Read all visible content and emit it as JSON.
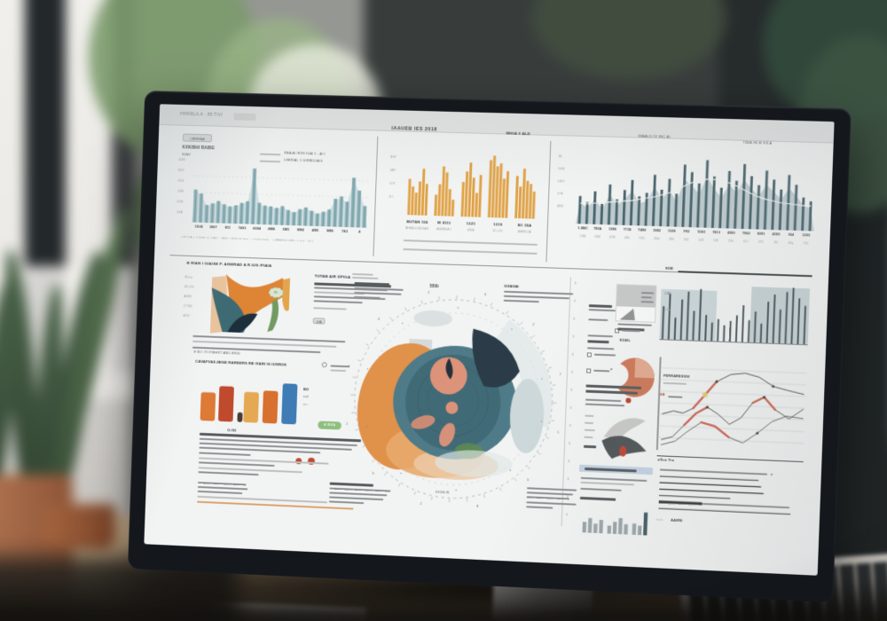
{
  "scene": {
    "description": "Desktop monitor on a wooden desk displaying a white analytics dashboard, blurred office background with plants, window and keyboard",
    "colors": {
      "teal_bar": "#8fb3ba",
      "dark_teal_bar": "#46626b",
      "amber_bar": "#e0a144",
      "orange": "#dd7a35",
      "red": "#bf4a2e",
      "blue": "#3f7cb5",
      "salmon": "#dd9379",
      "navy": "#2b3c48",
      "green": "#5c8a52",
      "screen_bg": "#f2f4f3",
      "bezel": "#14171c",
      "red_line": "#cf5f4c"
    }
  },
  "toolbar": {
    "left": "HHRRLA.A · 85 TIVI"
  },
  "top_row": {
    "panel_a": {
      "chip": "LIBHHAA",
      "label": "KXKIBHI RAIBG",
      "sub": "EIAV",
      "legend1": "RBA AI IRIIS IUAI 1 - AI I",
      "legend2": "LIBIRIAL 1 IUIRBILIAIG",
      "y_labels": [
        "40M",
        "60V",
        "41U",
        "14B",
        "61B",
        "14A"
      ],
      "x_labels": [
        "1908",
        "3907",
        "811",
        "7401",
        "6004",
        "4M4",
        "5M1",
        "8M0",
        "4M1",
        "5M6",
        "74J",
        "4"
      ],
      "caption": "CHIYIA + PIRBI LI LIAV · IAN I VESI E ILIL · I IVILIJILIL · 1 AAIBIILIJEIL + ILJ · ILIT"
    },
    "panel_b": {
      "title": "IAAUEB IES 2018",
      "right_header": "WHIA  § ALD",
      "y_labels": [
        "BIV",
        "IAV",
        "LIV",
        "ILI"
      ],
      "groups": [
        {
          "label": "BUTAN 156",
          "sub": "BHIALLIBOIAU"
        },
        {
          "label": "IE 8111",
          "sub": "AIBREA'I"
        },
        {
          "label": "13Z1",
          "sub": "43IA"
        },
        {
          "label": "1319",
          "sub": "IZ L31"
        },
        {
          "label": "B1 35A",
          "sub": "AHBILIA"
        }
      ]
    },
    "panel_c": {
      "header": "WAALD IV IBC AI",
      "header_right": "TIMA HLM KILA",
      "y_labels": [
        "8L",
        "IGB",
        "LBO",
        "IYB",
        "4BV"
      ],
      "x_row1": [
        "1.8MC",
        "790A",
        "1398",
        "7738",
        "T498",
        "1982",
        "1328",
        "F93",
        "5183",
        "7813",
        "4380",
        "7962",
        "8391",
        "4383",
        "304",
        "1293"
      ],
      "x_row2": [
        "73M",
        "19M",
        "47M",
        "48k",
        "74%",
        "83d",
        "184",
        "341",
        "143",
        "181",
        "316",
        "41J",
        "191",
        "84",
        "40g",
        "73J"
      ]
    }
  },
  "left_column": {
    "title": "B RIAN I GIAISE P. AISERAD A R.IUS /FIAIA",
    "stream_y_labels": [
      "9Drw",
      "49.4%",
      "AWB",
      "(T1B)",
      "A5D"
    ],
    "numbers_row": "E BI I IYI FIBHIIT ABIJ      ERID",
    "oval_label": "IBI",
    "side_title": "TUTAB AIR DPIGA",
    "side_chip": "GIB",
    "bars_title": "CAVAFVAII-IBISE RAREERS RB IVARI IS IUSROK",
    "bars_xlabel": "O.ISI",
    "legend_stack": [
      "BO",
      "rail",
      "imr"
    ],
    "green_button": "A IBKA"
  },
  "radial": {
    "top_label": "550i",
    "bottom_label": "DIGILIS",
    "tr_title": "GIIAIIAI",
    "ticks": [
      "4",
      "2",
      "7",
      "1",
      "3",
      "8",
      "2",
      "5",
      "1",
      "7",
      "4",
      "2"
    ]
  },
  "narrow_column": {
    "row_glyph": "II",
    "rows": 14,
    "micro_label": "EZAIL",
    "tri_glyph": "▼"
  },
  "right_panel": {
    "kiw": "KIW",
    "cib": "CIB",
    "iuib": "IUIb",
    "series_label": "FERRARESSSI",
    "marker_label": "AB",
    "axis_label": "aXca Yra",
    "bottom_left": "rrcri",
    "bottom_label": "AAMN"
  },
  "chart_data": {
    "top_left_bars": {
      "type": "bar",
      "values": [
        52,
        46,
        28,
        31,
        35,
        30,
        27,
        29,
        33,
        36,
        88,
        34,
        30,
        29,
        27,
        30,
        24,
        21,
        26,
        29,
        24,
        20,
        23,
        27,
        44,
        48,
        40,
        78,
        58,
        34
      ],
      "color": "#8fb3ba",
      "area_color": "#c9dadd",
      "title": "",
      "xlabel": "",
      "ylabel": ""
    },
    "top_mid_bars": {
      "type": "bar",
      "groups": [
        [
          48,
          38,
          30,
          45,
          62,
          42
        ],
        [
          28,
          42,
          66,
          58,
          36,
          22
        ],
        [
          46,
          60,
          72,
          52,
          32,
          56
        ],
        [
          76,
          82,
          68,
          72,
          52,
          62
        ],
        [
          56,
          42,
          66,
          50,
          46,
          36
        ]
      ],
      "color": "#e0a144"
    },
    "top_right_bars": {
      "type": "bar",
      "values": [
        38,
        30,
        45,
        28,
        55,
        35,
        48,
        62,
        40,
        45,
        70,
        50,
        65,
        45,
        85,
        75,
        60,
        92,
        70,
        55,
        78,
        65,
        88,
        72,
        60,
        80,
        68,
        55,
        75,
        62,
        45,
        40
      ],
      "color": "#46626b",
      "area_color": "#aebfc3",
      "line": [
        28,
        28,
        29,
        30,
        31,
        32,
        33,
        34,
        36,
        38,
        40,
        43,
        46,
        50,
        56,
        61,
        64,
        66,
        66,
        65,
        62,
        58,
        53,
        48,
        44,
        41,
        39,
        37,
        36,
        35,
        34,
        34
      ],
      "line_color": "#f2f2ef"
    },
    "category_bars": {
      "type": "bar",
      "values": [
        58,
        72,
        20,
        62,
        66,
        82
      ],
      "colors": [
        "#dd7a35",
        "#bf4a2e",
        "#4d3a34",
        "#e5a954",
        "#d8702f",
        "#3f7cb5"
      ]
    },
    "right_top_bars": {
      "type": "bar",
      "values": [
        45,
        62,
        30,
        55,
        66,
        40,
        70,
        35,
        25,
        30,
        22,
        28,
        36,
        50,
        30,
        42,
        26,
        56,
        66,
        46,
        70,
        76,
        62,
        52
      ],
      "color": "#39474c",
      "bg_color_a": "#ccd7da",
      "bg_color_b": "#c6d2d5"
    },
    "right_lines": {
      "type": "line",
      "grid_lines": 7,
      "series": [
        {
          "color": "#55544f",
          "points": [
            [
              0,
              62
            ],
            [
              8,
              58
            ],
            [
              15,
              60
            ],
            [
              22,
              54
            ],
            [
              30,
              38
            ],
            [
              38,
              22
            ],
            [
              48,
              13
            ],
            [
              58,
              11
            ],
            [
              68,
              15
            ],
            [
              78,
              25
            ],
            [
              88,
              29
            ],
            [
              100,
              33
            ]
          ]
        },
        {
          "color": "#5a5a55",
          "points": [
            [
              0,
              92
            ],
            [
              8,
              88
            ],
            [
              16,
              74
            ],
            [
              24,
              60
            ],
            [
              32,
              52
            ],
            [
              40,
              60
            ],
            [
              48,
              71
            ],
            [
              56,
              63
            ],
            [
              64,
              45
            ],
            [
              72,
              38
            ],
            [
              80,
              52
            ],
            [
              90,
              62
            ],
            [
              100,
              50
            ]
          ]
        },
        {
          "color": "#6a6a64",
          "points": [
            [
              0,
              98
            ],
            [
              10,
              93
            ],
            [
              18,
              82
            ],
            [
              28,
              70
            ],
            [
              38,
              74
            ],
            [
              48,
              86
            ],
            [
              58,
              92
            ],
            [
              68,
              80
            ],
            [
              78,
              66
            ],
            [
              88,
              59
            ],
            [
              100,
              61
            ]
          ]
        }
      ],
      "red_overlays": [
        [
          0,
          3,
          5
        ],
        [
          1,
          2,
          4
        ],
        [
          1,
          8,
          10
        ],
        [
          2,
          3,
          5
        ]
      ],
      "dots": [
        [
          0,
          5
        ],
        [
          1,
          4
        ],
        [
          1,
          9
        ],
        [
          2,
          7
        ],
        [
          0,
          9
        ]
      ],
      "red_color": "#cf5f4c"
    },
    "right_hbars": {
      "type": "bar",
      "widths": [
        78,
        72,
        74,
        76,
        52,
        95,
        96
      ],
      "thick_row": 5,
      "color": "#2f302e"
    },
    "mini_bars": {
      "type": "bar",
      "values": [
        40,
        55,
        35,
        50,
        30,
        45,
        60,
        38,
        42,
        35,
        85
      ],
      "color": "#9aa5a7",
      "last_color": "#3f5a63"
    }
  }
}
